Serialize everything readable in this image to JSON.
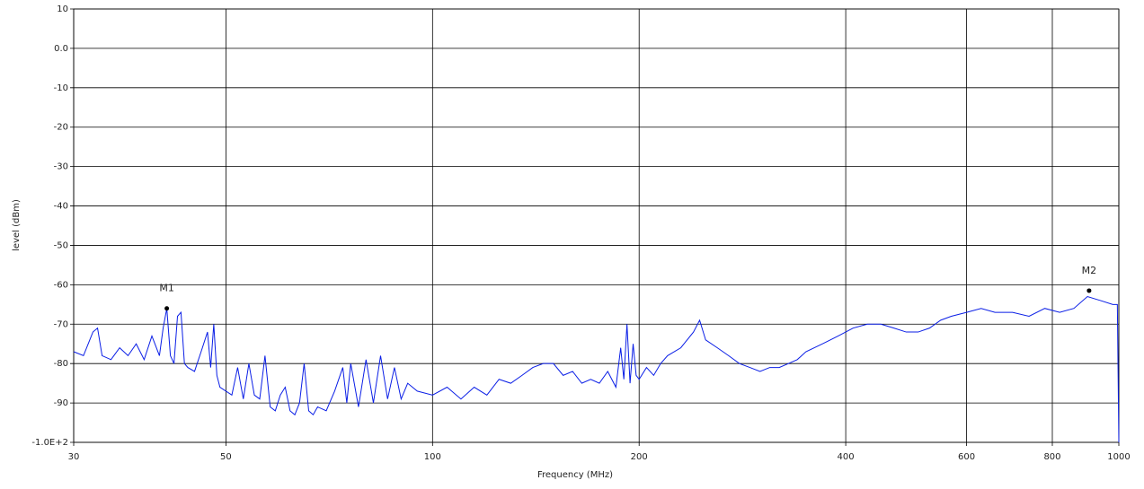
{
  "chart_data": {
    "type": "line",
    "xlabel": "Frequency (MHz)",
    "ylabel": "level (dBm)",
    "xscale": "log",
    "grid": true,
    "xlim": [
      30,
      1000
    ],
    "xticks": [
      30,
      50,
      100,
      200,
      400,
      600,
      800,
      1000
    ],
    "ylim": [
      -100,
      10
    ],
    "yticks": [
      {
        "value": -100,
        "label": "-1.0E+2"
      },
      -90,
      -80,
      -70,
      -60,
      -50,
      -40,
      -30,
      -20,
      -10,
      {
        "value": 0,
        "label": "0.0"
      },
      10
    ],
    "x": [
      30,
      31,
      32,
      32.5,
      33,
      34,
      35,
      36,
      37,
      38,
      39,
      40,
      40.5,
      41,
      41.5,
      42,
      42.5,
      43,
      43.5,
      44,
      45,
      46,
      47,
      47.5,
      48,
      48.5,
      49,
      50,
      51,
      52,
      53,
      54,
      55,
      56,
      57,
      58,
      59,
      60,
      61,
      62,
      63,
      64,
      65,
      66,
      67,
      68,
      70,
      72,
      74,
      75,
      76,
      78,
      80,
      82,
      84,
      86,
      88,
      90,
      92,
      95,
      100,
      105,
      110,
      115,
      120,
      125,
      130,
      135,
      140,
      145,
      150,
      155,
      160,
      165,
      170,
      175,
      180,
      185,
      188,
      190,
      192,
      194,
      196,
      198,
      200,
      205,
      210,
      215,
      220,
      230,
      240,
      245,
      250,
      260,
      270,
      280,
      290,
      300,
      310,
      320,
      330,
      340,
      350,
      370,
      390,
      410,
      430,
      450,
      470,
      490,
      510,
      530,
      550,
      570,
      600,
      630,
      660,
      700,
      740,
      780,
      820,
      860,
      900,
      940,
      980,
      995,
      1000
    ],
    "series": [
      {
        "name": "level",
        "color": "#0a1ee6",
        "values": [
          -77,
          -78,
          -72,
          -71,
          -78,
          -79,
          -76,
          -78,
          -75,
          -79,
          -73,
          -78,
          -71,
          -66,
          -78,
          -80,
          -68,
          -67,
          -80,
          -81,
          -82,
          -77,
          -72,
          -81,
          -70,
          -83,
          -86,
          -87,
          -88,
          -81,
          -89,
          -80,
          -88,
          -89,
          -78,
          -91,
          -92,
          -88,
          -86,
          -92,
          -93,
          -90,
          -80,
          -92,
          -93,
          -91,
          -92,
          -87,
          -81,
          -90,
          -80,
          -91,
          -79,
          -90,
          -78,
          -89,
          -81,
          -89,
          -85,
          -87,
          -88,
          -86,
          -89,
          -86,
          -88,
          -84,
          -85,
          -83,
          -81,
          -80,
          -80,
          -83,
          -82,
          -85,
          -84,
          -85,
          -82,
          -86,
          -76,
          -84,
          -70,
          -85,
          -75,
          -83,
          -84,
          -81,
          -83,
          -80,
          -78,
          -76,
          -72,
          -69,
          -74,
          -76,
          -78,
          -80,
          -81,
          -82,
          -81,
          -81,
          -80,
          -79,
          -77,
          -75,
          -73,
          -71,
          -70,
          -70,
          -71,
          -72,
          -72,
          -71,
          -69,
          -68,
          -67,
          -66,
          -67,
          -67,
          -68,
          -66,
          -67,
          -66,
          -63,
          -64,
          -65,
          -65,
          -100
        ]
      }
    ],
    "annotations": [
      {
        "label": "M1",
        "x": 41,
        "value": -66
      },
      {
        "label": "M2",
        "x": 905,
        "value": -61.5
      }
    ]
  }
}
